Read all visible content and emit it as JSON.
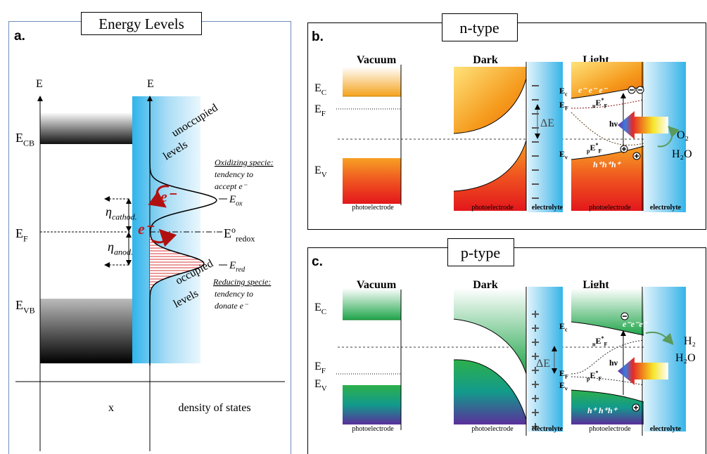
{
  "panel_a": {
    "label": "a.",
    "title": "Energy Levels",
    "energy_axis_left": "E",
    "energy_axis_right": "E",
    "x_axis": "x",
    "dos_axis": "density of states",
    "e_cb": {
      "base": "E",
      "sub": "CB"
    },
    "e_f": {
      "base": "E",
      "sub": "F"
    },
    "e_vb": {
      "base": "E",
      "sub": "VB"
    },
    "unoccupied": [
      "unoccupied",
      "levels"
    ],
    "occupied": [
      "occupied",
      "levels"
    ],
    "oxidizing": {
      "heading": "Oxidizing specie:",
      "lines": [
        "tendency to",
        "accept e⁻"
      ]
    },
    "reducing": {
      "heading": "Reducing specie:",
      "lines": [
        "tendency to",
        "donate e⁻"
      ]
    },
    "e_ox": {
      "base": "E",
      "sub": "ox"
    },
    "e_redox": {
      "base": "E",
      "sup": "o",
      "sub": "redox"
    },
    "e_red": {
      "base": "E",
      "sub": "red"
    },
    "eta_cathodic": {
      "base": "η",
      "sub": "cathod."
    },
    "eta_anodic": {
      "base": "η",
      "sub": "anod."
    },
    "electrons": [
      "e⁻",
      "e⁻"
    ]
  },
  "panel_b": {
    "label": "b.",
    "title": "n-type",
    "columns": [
      "Vacuum",
      "Dark",
      "Light"
    ],
    "e_c": {
      "base": "E",
      "sub": "C"
    },
    "e_f": {
      "base": "E",
      "sub": "F"
    },
    "e_v": {
      "base": "E",
      "sub": "V"
    },
    "delta_e": "ΔE",
    "photoelectrode": [
      "photoelectrode",
      "photoelectrode",
      "photoelectrode"
    ],
    "electrolyte": [
      "electrolyte",
      "electrolyte"
    ],
    "light_e_c": {
      "base": "E",
      "sub": "c"
    },
    "light_e_f": {
      "base": "E",
      "sub": "F"
    },
    "light_e_v": {
      "base": "E",
      "sub": "v"
    },
    "hv": "hν",
    "n_quasi_fermi": {
      "pre": "n",
      "base": "E",
      "sup": "*",
      "sub": "F"
    },
    "p_quasi_fermi": {
      "pre": "p",
      "base": "E",
      "sup": "*",
      "sub": "F"
    },
    "electrons_label": "e⁻ e⁻ e⁻",
    "holes_label": "h⁺h⁺h⁺",
    "products": [
      "O₂",
      "H₂O"
    ]
  },
  "panel_c": {
    "label": "c.",
    "title": "p-type",
    "columns": [
      "Vacuum",
      "Dark",
      "Light"
    ],
    "e_c": {
      "base": "E",
      "sub": "C"
    },
    "e_f": {
      "base": "E",
      "sub": "F"
    },
    "e_v": {
      "base": "E",
      "sub": "V"
    },
    "delta_e": "ΔE",
    "photoelectrode": [
      "photoelectrode",
      "photoelectrode",
      "photoelectrode"
    ],
    "electrolyte": [
      "electrolyte",
      "electrolyte"
    ],
    "light_e_c": {
      "base": "E",
      "sub": "c"
    },
    "light_e_f": {
      "base": "E",
      "sub": "F"
    },
    "light_e_v": {
      "base": "E",
      "sub": "v"
    },
    "hv": "hν",
    "n_quasi_fermi": {
      "pre": "n",
      "base": "E",
      "sup": "*",
      "sub": "F"
    },
    "p_quasi_fermi": {
      "pre": "p",
      "base": "E",
      "sup": "*",
      "sub": "F"
    },
    "electrons_label": "e⁻e⁻e⁻",
    "holes_label": "h⁺ h⁺h⁺",
    "products": [
      "H₂",
      "H₂O"
    ]
  }
}
